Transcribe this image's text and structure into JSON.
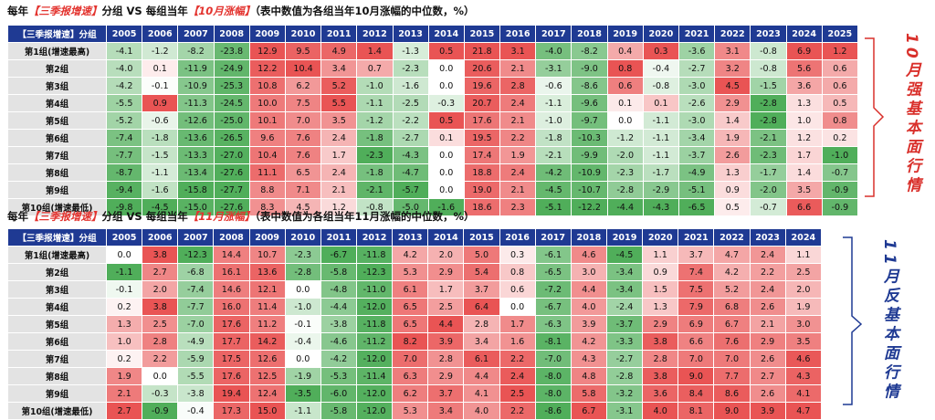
{
  "chart_data": [
    {
      "type": "heatmap",
      "title_parts": [
        "每年",
        "【三季报增速】",
        "分组 VS 每组当年",
        "【10月涨幅】",
        "（表中数值为各组当年10月涨幅的中位数，%）"
      ],
      "corner_label": "【三季报增速】分组",
      "columns": [
        "2005",
        "2006",
        "2007",
        "2008",
        "2009",
        "2010",
        "2011",
        "2012",
        "2013",
        "2014",
        "2015",
        "2016",
        "2017",
        "2018",
        "2019",
        "2020",
        "2021",
        "2022",
        "2023",
        "2024",
        "2025"
      ],
      "rows": [
        "第1组(增速最高)",
        "第2组",
        "第3组",
        "第4组",
        "第5组",
        "第6组",
        "第7组",
        "第8组",
        "第9组",
        "第10组(增速最低)"
      ],
      "values": [
        [
          -4.1,
          -1.2,
          -8.2,
          -23.8,
          12.9,
          9.5,
          4.9,
          1.4,
          -1.3,
          0.5,
          21.8,
          3.1,
          -4.0,
          -8.2,
          0.4,
          0.3,
          -3.6,
          3.1,
          -0.8,
          6.9,
          1.2
        ],
        [
          -4.0,
          0.1,
          -11.9,
          -24.9,
          12.2,
          10.4,
          3.4,
          0.7,
          -2.3,
          0.0,
          20.6,
          2.1,
          -3.1,
          -9.0,
          0.8,
          -0.4,
          -2.7,
          3.2,
          -0.8,
          5.6,
          0.6
        ],
        [
          -4.2,
          -0.1,
          -10.9,
          -25.3,
          10.8,
          6.2,
          5.2,
          -1.0,
          -1.6,
          0.0,
          19.6,
          2.8,
          -0.6,
          -8.6,
          0.6,
          -0.8,
          -3.0,
          4.5,
          -1.5,
          3.6,
          0.6
        ],
        [
          -5.5,
          0.9,
          -11.3,
          -24.5,
          10.0,
          7.5,
          5.5,
          -1.1,
          -2.5,
          -0.3,
          20.7,
          2.4,
          -1.1,
          -9.6,
          0.1,
          0.1,
          -2.6,
          2.9,
          -2.8,
          1.3,
          0.5
        ],
        [
          -5.2,
          -0.6,
          -12.6,
          -25.0,
          10.1,
          7.0,
          3.5,
          -1.2,
          -2.2,
          0.5,
          17.6,
          2.1,
          -1.0,
          -9.7,
          0.0,
          -1.1,
          -3.0,
          1.4,
          -2.8,
          1.0,
          0.8
        ],
        [
          -7.4,
          -1.8,
          -13.6,
          -26.5,
          9.6,
          7.6,
          2.4,
          -1.8,
          -2.7,
          0.1,
          19.5,
          2.2,
          -1.8,
          -10.3,
          -1.2,
          -1.1,
          -3.4,
          1.9,
          -2.1,
          1.2,
          0.2
        ],
        [
          -7.7,
          -1.5,
          -13.3,
          -27.0,
          10.4,
          7.6,
          1.7,
          -2.3,
          -4.3,
          0.0,
          17.4,
          1.9,
          -2.1,
          -9.9,
          -2.0,
          -1.1,
          -3.7,
          2.6,
          -2.3,
          1.7,
          -1.0
        ],
        [
          -8.7,
          -1.1,
          -13.4,
          -27.6,
          11.1,
          6.5,
          2.4,
          -1.8,
          -4.7,
          0.0,
          18.8,
          2.4,
          -4.2,
          -10.9,
          -2.3,
          -1.7,
          -4.9,
          1.3,
          -1.7,
          1.4,
          -0.7
        ],
        [
          -9.4,
          -1.6,
          -15.8,
          -27.7,
          8.8,
          7.1,
          2.1,
          -2.1,
          -5.7,
          0.0,
          19.0,
          2.1,
          -4.5,
          -10.7,
          -2.8,
          -2.9,
          -5.1,
          0.9,
          -2.0,
          3.5,
          -0.9
        ],
        [
          -9.8,
          -4.5,
          -15.0,
          -27.6,
          8.3,
          4.5,
          1.2,
          -0.8,
          -5.0,
          -1.6,
          18.6,
          2.3,
          -5.1,
          -12.2,
          -4.4,
          -4.3,
          -6.5,
          0.5,
          -0.7,
          6.6,
          -0.9
        ]
      ],
      "side_label": "10月强基本面行情"
    },
    {
      "type": "heatmap",
      "title_parts": [
        "每年",
        "【三季报增速】",
        "分组 VS 每组当年",
        "【11月涨幅】",
        "（表中数值为各组当年11月涨幅的中位数，%）"
      ],
      "corner_label": "【三季报增速】分组",
      "columns": [
        "2005",
        "2006",
        "2007",
        "2008",
        "2009",
        "2010",
        "2011",
        "2012",
        "2013",
        "2014",
        "2015",
        "2016",
        "2017",
        "2018",
        "2019",
        "2020",
        "2021",
        "2022",
        "2023",
        "2024"
      ],
      "rows": [
        "第1组(增速最高)",
        "第2组",
        "第3组",
        "第4组",
        "第5组",
        "第6组",
        "第7组",
        "第8组",
        "第9组",
        "第10组(增速最低)"
      ],
      "values": [
        [
          0.0,
          3.8,
          -12.3,
          14.4,
          10.7,
          -2.3,
          -6.7,
          -11.8,
          4.2,
          2.0,
          5.0,
          0.3,
          -6.1,
          4.6,
          -4.5,
          1.1,
          3.7,
          4.7,
          2.4,
          1.1
        ],
        [
          -1.1,
          2.7,
          -6.8,
          16.1,
          13.6,
          -2.8,
          -5.8,
          -12.3,
          5.3,
          2.9,
          5.4,
          0.8,
          -6.5,
          3.0,
          -3.4,
          0.9,
          7.4,
          4.2,
          2.2,
          2.5
        ],
        [
          -0.1,
          2.0,
          -7.4,
          14.6,
          12.1,
          0.0,
          -4.8,
          -11.0,
          6.1,
          1.7,
          3.7,
          0.6,
          -7.2,
          4.4,
          -3.4,
          1.5,
          7.5,
          5.2,
          2.4,
          2.0
        ],
        [
          0.2,
          3.8,
          -7.7,
          16.0,
          11.4,
          -1.0,
          -4.4,
          -12.0,
          6.5,
          2.5,
          6.4,
          0.0,
          -6.7,
          4.0,
          -2.4,
          1.3,
          7.9,
          6.8,
          2.6,
          1.9
        ],
        [
          1.3,
          2.5,
          -7.0,
          17.6,
          11.2,
          -0.1,
          -3.8,
          -11.8,
          6.5,
          4.4,
          2.8,
          1.7,
          -6.3,
          3.9,
          -3.7,
          2.9,
          6.9,
          6.7,
          2.1,
          3.0
        ],
        [
          1.0,
          2.8,
          -4.9,
          17.7,
          14.2,
          -0.4,
          -4.6,
          -11.2,
          8.2,
          3.9,
          3.4,
          1.6,
          -8.1,
          4.2,
          -3.3,
          3.8,
          6.6,
          7.6,
          2.9,
          3.5
        ],
        [
          0.2,
          2.2,
          -5.9,
          17.5,
          12.6,
          0.0,
          -4.2,
          -12.0,
          7.0,
          2.8,
          6.1,
          2.2,
          -7.0,
          4.3,
          -2.7,
          2.8,
          7.0,
          7.0,
          2.6,
          4.6
        ],
        [
          1.9,
          0.0,
          -5.5,
          17.6,
          12.5,
          -1.9,
          -5.3,
          -11.4,
          6.3,
          2.9,
          4.4,
          2.4,
          -8.0,
          4.8,
          -2.8,
          3.8,
          9.0,
          7.7,
          2.7,
          4.3
        ],
        [
          2.1,
          -0.3,
          -3.8,
          19.4,
          12.4,
          -3.5,
          -6.0,
          -12.0,
          6.2,
          3.7,
          4.1,
          2.5,
          -8.0,
          5.8,
          -3.2,
          3.6,
          8.4,
          8.6,
          2.6,
          4.1
        ],
        [
          2.7,
          -0.9,
          -0.4,
          17.3,
          15.0,
          -1.1,
          -5.8,
          -12.0,
          5.3,
          3.4,
          4.0,
          2.2,
          -8.6,
          6.7,
          -3.1,
          4.0,
          8.1,
          9.0,
          3.9,
          4.7
        ]
      ],
      "side_label": "11月反基本面行情"
    }
  ]
}
